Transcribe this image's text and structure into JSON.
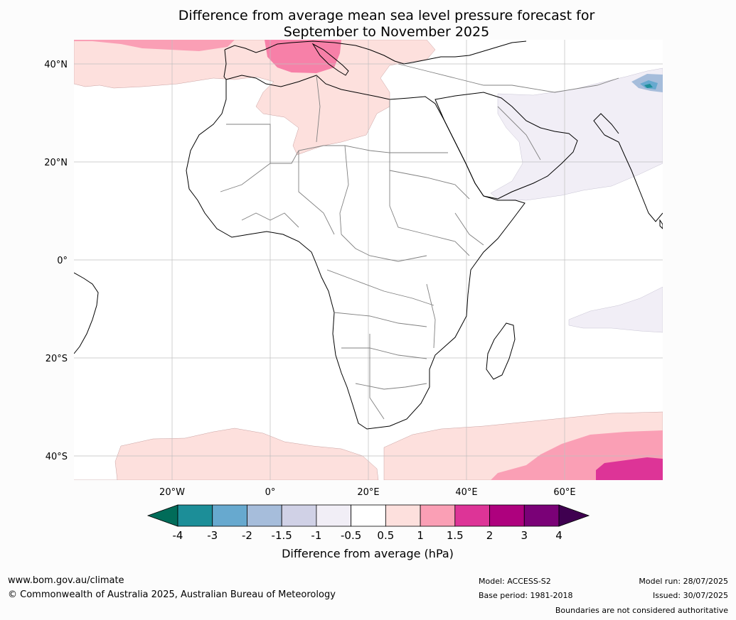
{
  "title": {
    "line1": "Difference from average mean sea level pressure forecast for",
    "line2": "September to November 2025"
  },
  "map": {
    "lat_labels": [
      "40°N",
      "20°N",
      "0°",
      "20°S",
      "40°S"
    ],
    "lon_labels": [
      "20°W",
      "0°",
      "20°E",
      "40°E",
      "60°E"
    ],
    "colors": {
      "land_border": "#000000",
      "country_border": "#808080",
      "grid": "#bfbfbf"
    }
  },
  "legend": {
    "title": "Difference from average (hPa)",
    "ticks": [
      "-4",
      "-3",
      "-2",
      "-1.5",
      "-1",
      "-0.5",
      "0.5",
      "1",
      "1.5",
      "2",
      "3",
      "4"
    ],
    "low_extension_color": "#016c59",
    "high_extension_color": "#3f0050",
    "bins": [
      {
        "color": "#1c8e98"
      },
      {
        "color": "#67a9cf"
      },
      {
        "color": "#a6bddb"
      },
      {
        "color": "#d0d1e6"
      },
      {
        "color": "#f1eef6"
      },
      {
        "color": "#ffffff"
      },
      {
        "color": "#fde0dd"
      },
      {
        "color": "#fa9fb5"
      },
      {
        "color": "#dd3497"
      },
      {
        "color": "#ae017e"
      },
      {
        "color": "#7a0177"
      }
    ]
  },
  "footer": {
    "website": "www.bom.gov.au/climate",
    "copyright": "© Commonwealth of Australia 2025, Australian Bureau of Meteorology",
    "model": "Model: ACCESS-S2",
    "base_period": "Base period: 1981-2018",
    "model_run": "Model run: 28/07/2025",
    "issued": "Issued: 30/07/2025",
    "disclaimer": "Boundaries are not considered authoritative"
  }
}
